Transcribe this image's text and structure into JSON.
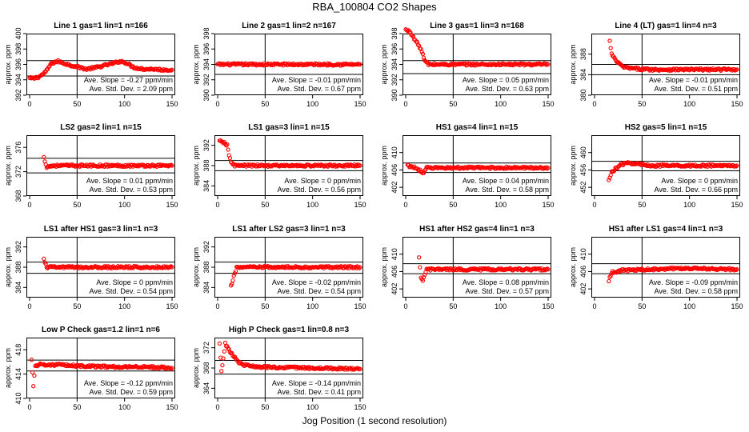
{
  "title": "RBA_100804  CO2 Shapes",
  "xlabel": "Jog Position (1 second resolution)",
  "colors": {
    "points": "#ff0000",
    "axes": "#000000",
    "background": "#ffffff"
  },
  "chart_data": [
    {
      "type": "scatter",
      "title": "Line 1 gas=1 lin=1 n=166",
      "ylabel": "approx. ppm",
      "xlim": [
        0,
        150
      ],
      "ylim": [
        392,
        400
      ],
      "yticks": [
        392,
        394,
        396,
        398,
        400
      ],
      "xticks": [
        0,
        50,
        100,
        150
      ],
      "vline": 50,
      "hlines": [
        396.5,
        394.5
      ],
      "slope_text": "Ave. Slope = -0.27 ppm/min",
      "std_text": "Ave. Std. Dev. = 2.09 ppm",
      "series": [
        {
          "points": [
            [
              0,
              394.2
            ],
            [
              5,
              394.2
            ],
            [
              10,
              394.4
            ],
            [
              15,
              394.8
            ],
            [
              18,
              395.2
            ],
            [
              22,
              396.0
            ],
            [
              26,
              396.3
            ],
            [
              30,
              396.4
            ],
            [
              40,
              396.0
            ],
            [
              50,
              395.7
            ],
            [
              60,
              395.4
            ],
            [
              70,
              395.6
            ],
            [
              80,
              395.9
            ],
            [
              90,
              396.2
            ],
            [
              95,
              396.4
            ],
            [
              100,
              396.3
            ],
            [
              110,
              395.6
            ],
            [
              120,
              395.4
            ],
            [
              130,
              395.4
            ],
            [
              140,
              395.3
            ],
            [
              150,
              395.3
            ]
          ]
        }
      ]
    },
    {
      "type": "scatter",
      "title": "Line 2 gas=1 lin=2 n=167",
      "ylabel": "approx. ppm",
      "xlim": [
        0,
        150
      ],
      "ylim": [
        390,
        398
      ],
      "yticks": [
        390,
        392,
        394,
        396,
        398
      ],
      "xticks": [
        0,
        50,
        100,
        150
      ],
      "vline": 50,
      "hlines": [
        394.0,
        392.7
      ],
      "slope_text": "Ave. Slope = -0.01 ppm/min",
      "std_text": "Ave. Std. Dev. = 0.67 ppm",
      "series": [
        {
          "points": [
            [
              0,
              394.0
            ],
            [
              25,
              394.0
            ],
            [
              50,
              394.0
            ],
            [
              75,
              394.0
            ],
            [
              100,
              394.0
            ],
            [
              125,
              394.0
            ],
            [
              150,
              394.0
            ]
          ]
        }
      ]
    },
    {
      "type": "scatter",
      "title": "Line 3 gas=1 lin=3 n=168",
      "ylabel": "approx. ppm",
      "xlim": [
        0,
        150
      ],
      "ylim": [
        390,
        398
      ],
      "yticks": [
        390,
        392,
        394,
        396,
        398
      ],
      "xticks": [
        0,
        50,
        100,
        150
      ],
      "vline": 50,
      "hlines": [
        394.5,
        392.8
      ],
      "slope_text": "Ave. Slope = 0.05 ppm/min",
      "std_text": "Ave. Std. Dev. = 0.63 ppm",
      "series": [
        {
          "points": [
            [
              0,
              398.5
            ],
            [
              5,
              398.2
            ],
            [
              8,
              397.5
            ],
            [
              12,
              396.8
            ],
            [
              16,
              396.0
            ],
            [
              20,
              394.5
            ],
            [
              24,
              394.0
            ],
            [
              30,
              394.0
            ],
            [
              60,
              394.0
            ],
            [
              90,
              394.0
            ],
            [
              120,
              394.0
            ],
            [
              150,
              394.0
            ]
          ]
        }
      ]
    },
    {
      "type": "scatter",
      "title": "Line 4 (LT) gas=1 lin=4 n=3",
      "ylabel": "approx. ppm",
      "xlim": [
        0,
        150
      ],
      "ylim": [
        380,
        392
      ],
      "yticks": [
        380,
        384,
        388
      ],
      "xticks": [
        0,
        50,
        100,
        150
      ],
      "vline": 50,
      "hlines": [
        386.0,
        384.0
      ],
      "slope_text": "Ave. Slope = -0.01 ppm/min",
      "std_text": "Ave. Std. Dev. = 0.51 ppm",
      "series": [
        {
          "points": [
            [
              16,
              390.5
            ],
            [
              18,
              388.0
            ],
            [
              22,
              386.8
            ],
            [
              30,
              385.5
            ],
            [
              40,
              385.2
            ],
            [
              60,
              385.0
            ],
            [
              90,
              385.0
            ],
            [
              120,
              385.0
            ],
            [
              150,
              385.0
            ]
          ]
        }
      ]
    },
    {
      "type": "scatter",
      "title": "LS2 gas=2 lin=1 n=15",
      "ylabel": "approx. ppm",
      "xlim": [
        0,
        150
      ],
      "ylim": [
        368,
        378
      ],
      "yticks": [
        368,
        372,
        376
      ],
      "xticks": [
        0,
        50,
        100,
        150
      ],
      "vline": 50,
      "hlines": [
        374.2,
        371.8
      ],
      "slope_text": "Ave. Slope = 0.01 ppm/min",
      "std_text": "Ave. Std. Dev. = 0.53 ppm",
      "series": [
        {
          "points": [
            [
              15,
              374.3
            ],
            [
              18,
              372.8
            ],
            [
              25,
              373.0
            ],
            [
              50,
              373.0
            ],
            [
              75,
              373.0
            ],
            [
              100,
              373.0
            ],
            [
              125,
              373.0
            ],
            [
              150,
              373.0
            ]
          ]
        }
      ]
    },
    {
      "type": "scatter",
      "title": "LS1 gas=3 lin=1 n=15",
      "ylabel": "approx. ppm",
      "xlim": [
        0,
        150
      ],
      "ylim": [
        382,
        394
      ],
      "yticks": [
        384,
        388,
        392
      ],
      "xticks": [
        0,
        50,
        100,
        150
      ],
      "vline": 50,
      "hlines": [
        389.0,
        387.0
      ],
      "slope_text": "Ave. Slope = 0 ppm/min",
      "std_text": "Ave. Std. Dev. = 0.56 ppm",
      "series": [
        {
          "points": [
            [
              2,
              392.8
            ],
            [
              6,
              392.6
            ],
            [
              10,
              392.0
            ],
            [
              12,
              390.0
            ],
            [
              14,
              388.8
            ],
            [
              18,
              388.0
            ],
            [
              30,
              388.0
            ],
            [
              60,
              388.0
            ],
            [
              90,
              388.0
            ],
            [
              120,
              388.0
            ],
            [
              150,
              388.0
            ]
          ]
        }
      ]
    },
    {
      "type": "scatter",
      "title": "HS1 gas=4 lin=1 n=15",
      "ylabel": "approx. ppm",
      "xlim": [
        0,
        150
      ],
      "ylim": [
        400,
        414
      ],
      "yticks": [
        402,
        406,
        410
      ],
      "xticks": [
        0,
        50,
        100,
        150
      ],
      "vline": 50,
      "hlines": [
        407.6,
        405.4
      ],
      "slope_text": "Ave. Slope = 0.04 ppm/min",
      "std_text": "Ave. Std. Dev. = 0.58 ppm",
      "series": [
        {
          "points": [
            [
              2,
              407.0
            ],
            [
              10,
              406.5
            ],
            [
              15,
              406.0
            ],
            [
              18,
              405.0
            ],
            [
              22,
              406.5
            ],
            [
              40,
              406.5
            ],
            [
              70,
              406.5
            ],
            [
              100,
              406.5
            ],
            [
              130,
              406.5
            ],
            [
              150,
              406.5
            ]
          ]
        }
      ]
    },
    {
      "type": "scatter",
      "title": "HS2 gas=5 lin=1 n=15",
      "ylabel": "approx. ppm",
      "xlim": [
        0,
        150
      ],
      "ylim": [
        450,
        464
      ],
      "yticks": [
        452,
        456,
        460
      ],
      "xticks": [
        0,
        50,
        100,
        150
      ],
      "vline": 50,
      "hlines": [
        458.0,
        455.8
      ],
      "slope_text": "Ave. Slope = 0 ppm/min",
      "std_text": "Ave. Std. Dev. = 0.66 ppm",
      "series": [
        {
          "points": [
            [
              15,
              453.5
            ],
            [
              18,
              455.5
            ],
            [
              22,
              456.3
            ],
            [
              28,
              457.2
            ],
            [
              35,
              457.6
            ],
            [
              45,
              457.4
            ],
            [
              60,
              457.0
            ],
            [
              80,
              457.0
            ],
            [
              100,
              457.0
            ],
            [
              120,
              457.0
            ],
            [
              150,
              457.0
            ]
          ]
        }
      ]
    },
    {
      "type": "scatter",
      "title": "LS1 after HS1 gas=3 lin=1 n=3",
      "ylabel": "approx. ppm",
      "xlim": [
        0,
        150
      ],
      "ylim": [
        382,
        394
      ],
      "yticks": [
        384,
        388,
        392
      ],
      "xticks": [
        0,
        50,
        100,
        150
      ],
      "vline": 50,
      "hlines": [
        389.0,
        386.8
      ],
      "slope_text": "Ave. Slope = 0 ppm/min",
      "std_text": "Ave. Std. Dev. = 0.54 ppm",
      "series": [
        {
          "points": [
            [
              15,
              389.5
            ],
            [
              18,
              388.0
            ],
            [
              30,
              388.0
            ],
            [
              60,
              388.0
            ],
            [
              90,
              388.0
            ],
            [
              120,
              388.0
            ],
            [
              150,
              388.0
            ]
          ]
        }
      ]
    },
    {
      "type": "scatter",
      "title": "LS1 after LS2 gas=3 lin=1 n=3",
      "ylabel": "approx. ppm",
      "xlim": [
        0,
        150
      ],
      "ylim": [
        382,
        394
      ],
      "yticks": [
        384,
        388,
        392
      ],
      "xticks": [
        0,
        50,
        100,
        150
      ],
      "vline": 50,
      "hlines": [
        389.0,
        386.8
      ],
      "slope_text": "Ave. Slope = -0.02 ppm/min",
      "std_text": "Ave. Std. Dev. = 0.54 ppm",
      "series": [
        {
          "points": [
            [
              14,
              384.2
            ],
            [
              20,
              388.0
            ],
            [
              40,
              388.0
            ],
            [
              70,
              388.0
            ],
            [
              100,
              388.0
            ],
            [
              130,
              388.0
            ],
            [
              150,
              388.0
            ]
          ]
        }
      ]
    },
    {
      "type": "scatter",
      "title": "HS1 after HS2 gas=4 lin=1 n=3",
      "ylabel": "approx. ppm",
      "xlim": [
        0,
        150
      ],
      "ylim": [
        400,
        414
      ],
      "yticks": [
        402,
        406,
        410
      ],
      "xticks": [
        0,
        50,
        100,
        150
      ],
      "vline": 50,
      "hlines": [
        407.8,
        405.5
      ],
      "slope_text": "Ave. Slope = 0.08 ppm/min",
      "std_text": "Ave. Std. Dev. = 0.57 ppm",
      "series": [
        {
          "points": [
            [
              14,
              409.0
            ],
            [
              16,
              404.5
            ],
            [
              18,
              404.0
            ],
            [
              22,
              406.5
            ],
            [
              40,
              406.5
            ],
            [
              70,
              406.5
            ],
            [
              100,
              406.5
            ],
            [
              130,
              406.5
            ],
            [
              150,
              406.5
            ]
          ]
        }
      ]
    },
    {
      "type": "scatter",
      "title": "HS1 after LS1 gas=4 lin=1 n=3",
      "ylabel": "approx. ppm",
      "xlim": [
        0,
        150
      ],
      "ylim": [
        400,
        414
      ],
      "yticks": [
        402,
        406,
        410
      ],
      "xticks": [
        0,
        50,
        100,
        150
      ],
      "vline": 50,
      "hlines": [
        407.8,
        405.5
      ],
      "slope_text": "Ave. Slope = -0.09 ppm/min",
      "std_text": "Ave. Std. Dev. = 0.58 ppm",
      "series": [
        {
          "points": [
            [
              15,
              404.0
            ],
            [
              18,
              405.8
            ],
            [
              30,
              406.3
            ],
            [
              60,
              406.5
            ],
            [
              90,
              406.8
            ],
            [
              120,
              406.6
            ],
            [
              150,
              406.5
            ]
          ]
        }
      ]
    },
    {
      "type": "scatter",
      "title": "Low P Check gas=1.2 lin=1 n=6",
      "ylabel": "approx. ppm",
      "xlim": [
        0,
        150
      ],
      "ylim": [
        410,
        420
      ],
      "yticks": [
        410,
        414,
        418
      ],
      "xticks": [
        0,
        50,
        100,
        150
      ],
      "vline": 50,
      "hlines": [
        416.3,
        414.5
      ],
      "slope_text": "Ave. Slope = -0.12 ppm/min",
      "std_text": "Ave. Std. Dev. = 0.59 ppm",
      "series": [
        {
          "points": [
            [
              2,
              416.5
            ],
            [
              4,
              412.0
            ],
            [
              6,
              415.3
            ],
            [
              10,
              415.6
            ],
            [
              30,
              415.5
            ],
            [
              60,
              415.3
            ],
            [
              90,
              415.2
            ],
            [
              120,
              415.2
            ],
            [
              150,
              415.0
            ]
          ]
        }
      ]
    },
    {
      "type": "scatter",
      "title": "High P Check gas=1 lin=0.8 n=3",
      "ylabel": "approx. ppm",
      "xlim": [
        0,
        150
      ],
      "ylim": [
        362,
        374
      ],
      "yticks": [
        364,
        368,
        372
      ],
      "xticks": [
        0,
        50,
        100,
        150
      ],
      "vline": 50,
      "hlines": [
        369.5,
        366.8
      ],
      "slope_text": "Ave. Slope = -0.14 ppm/min",
      "std_text": "Ave. Std. Dev. = 0.41 ppm",
      "series": [
        {
          "points": [
            [
              2,
              373.0
            ],
            [
              4,
              367.2
            ],
            [
              8,
              372.8
            ],
            [
              14,
              371.0
            ],
            [
              18,
              370.0
            ],
            [
              22,
              369.2
            ],
            [
              28,
              368.6
            ],
            [
              40,
              368.2
            ],
            [
              70,
              368.1
            ],
            [
              100,
              368.0
            ],
            [
              130,
              367.9
            ],
            [
              150,
              367.8
            ]
          ]
        }
      ]
    }
  ]
}
